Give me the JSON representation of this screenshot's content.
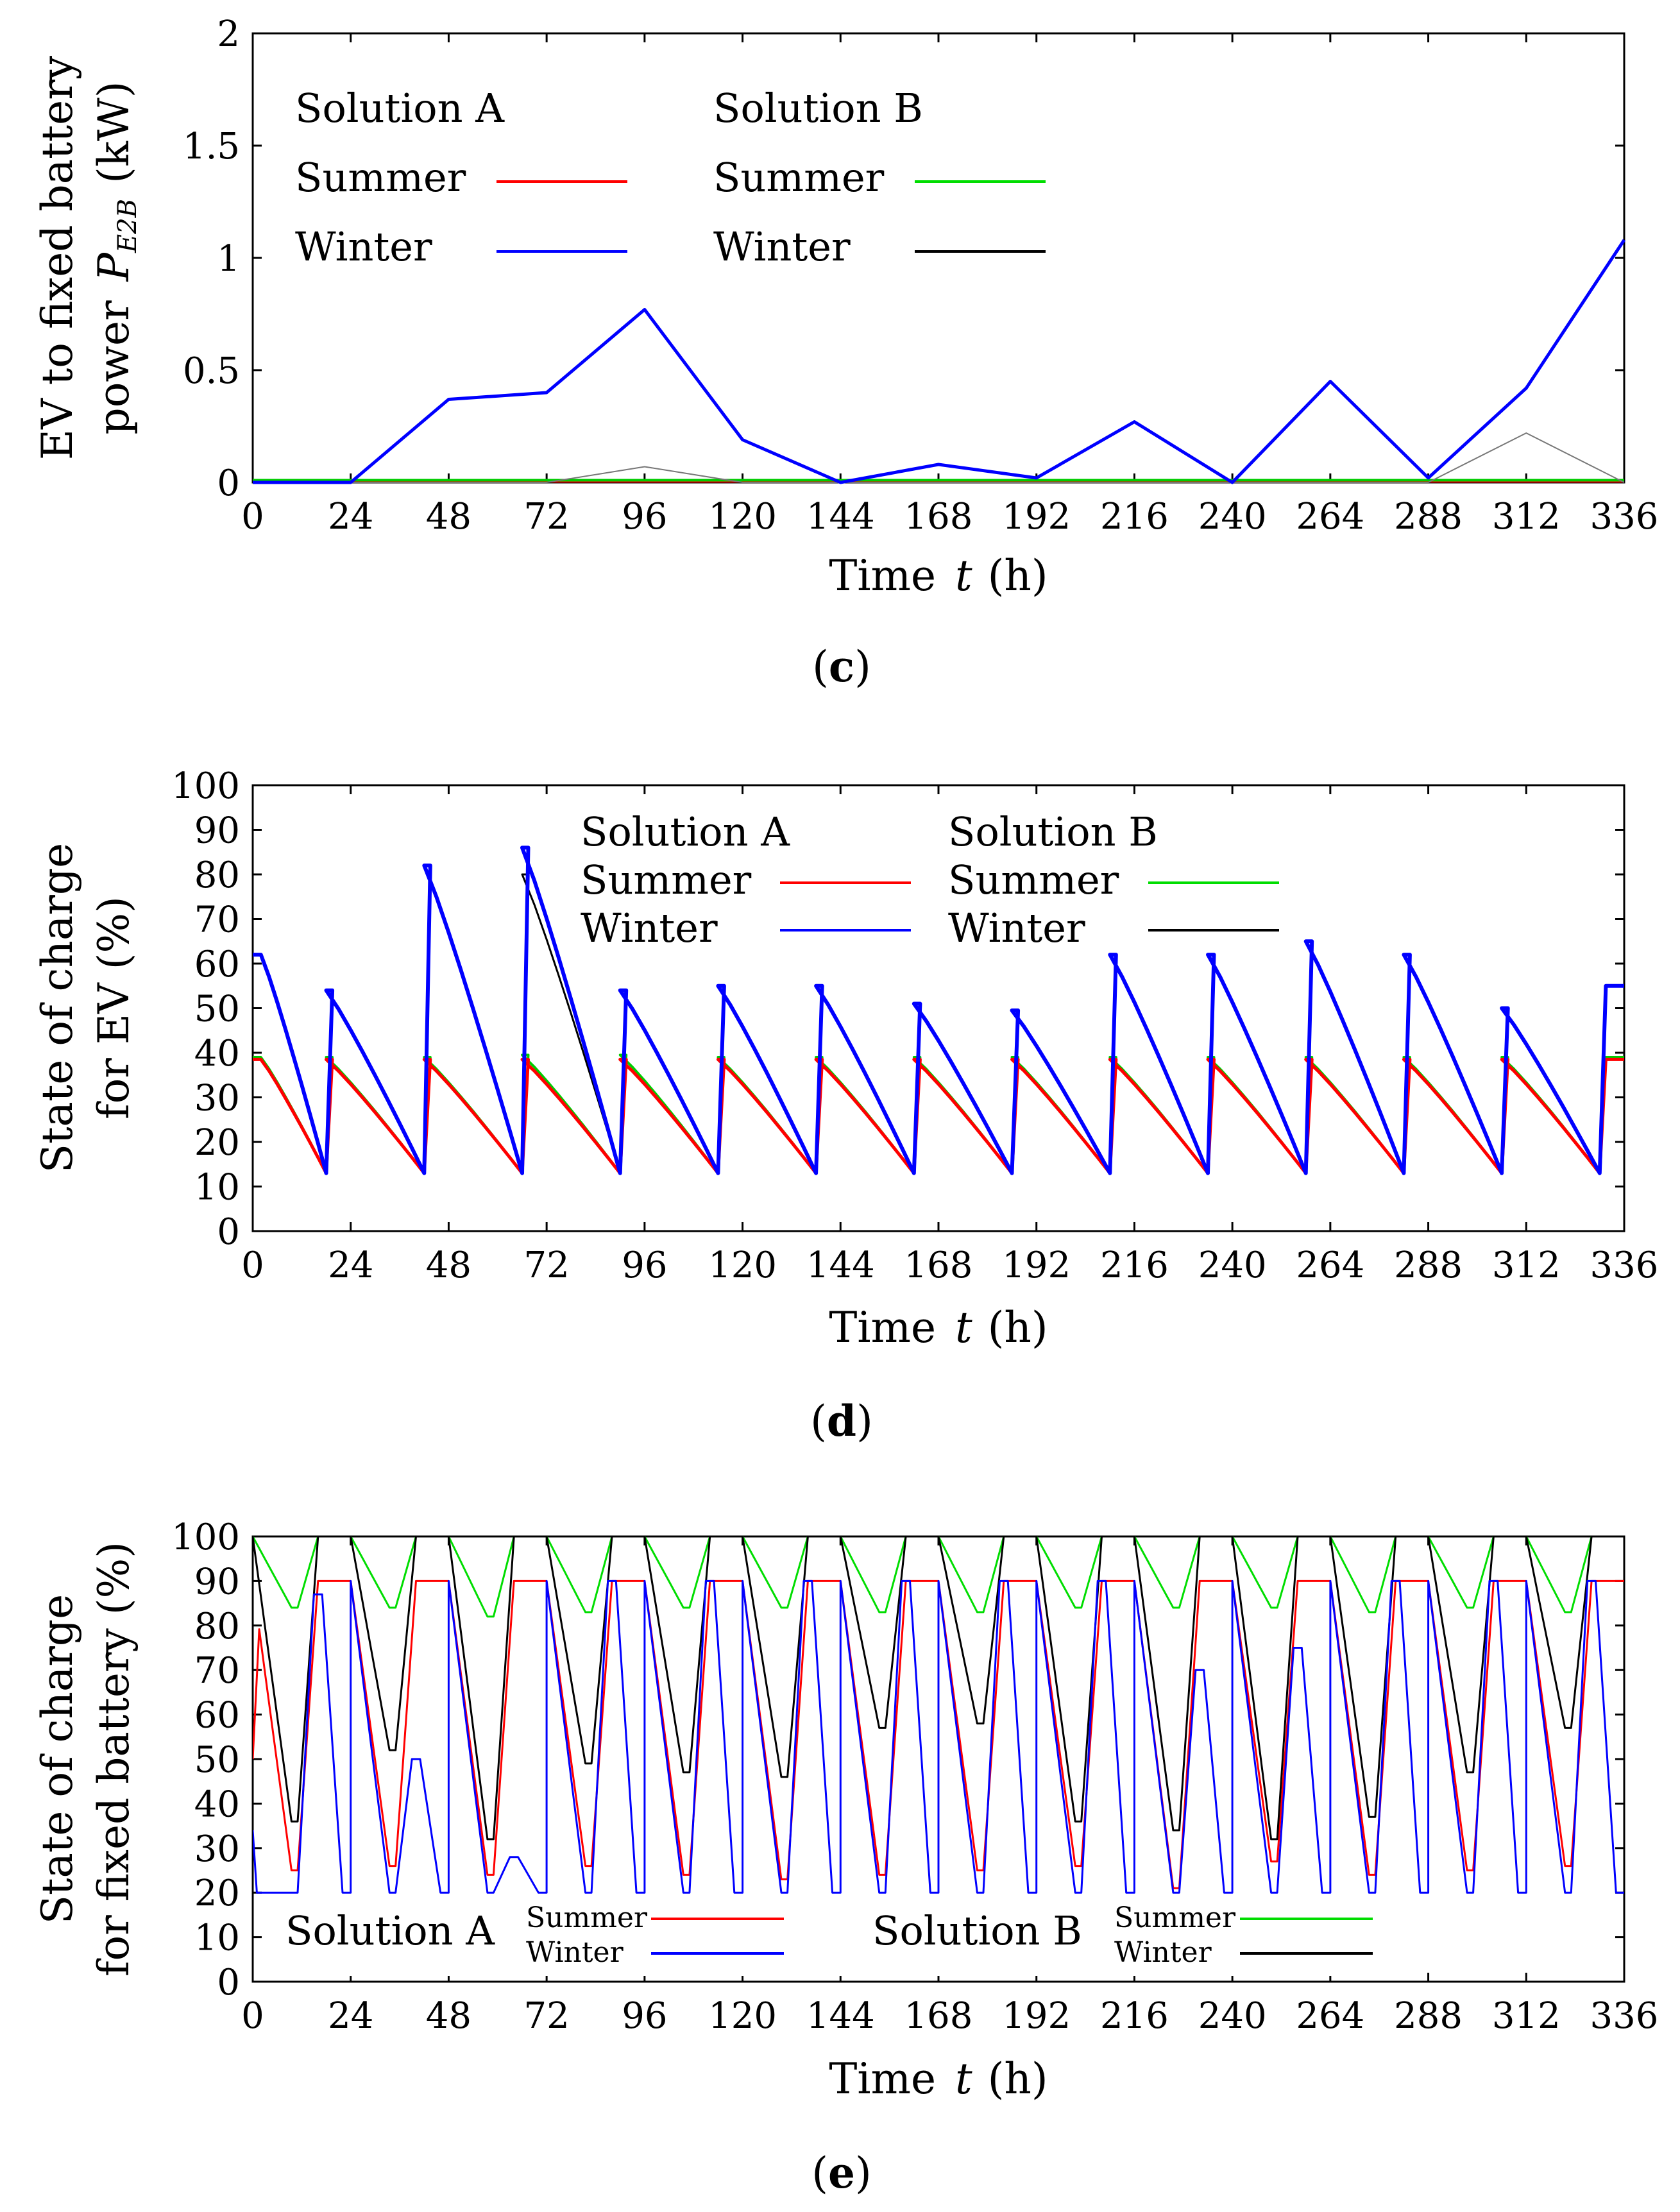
{
  "colors": {
    "summer_a": "#ff0000",
    "winter_a": "#0000ff",
    "summer_b": "#00dd00",
    "winter_b": "#000000"
  },
  "chart_data": [
    {
      "id": "c",
      "panel_label_open": "(",
      "panel_label_letter": "c",
      "panel_label_close": ")",
      "type": "line",
      "ylabel_line1": "EV to fixed battery",
      "ylabel_line2_prefix": "power",
      "ylabel_symbol": "P",
      "ylabel_subscript": "E2B",
      "ylabel_unit": "(kW)",
      "xlabel_prefix": "Time",
      "xlabel_var": "t",
      "xlabel_unit": "(h)",
      "xlim": [
        0,
        336
      ],
      "ylim": [
        0,
        2
      ],
      "xticks": [
        0,
        24,
        48,
        72,
        96,
        120,
        144,
        168,
        192,
        216,
        240,
        264,
        288,
        312,
        336
      ],
      "yticks": [
        0,
        0.5,
        1,
        1.5,
        2
      ],
      "ytick_labels": [
        "0",
        "0.5",
        "1",
        "1.5",
        "2"
      ],
      "legend": {
        "group_a": "Solution A",
        "group_b": "Solution B",
        "summer": "Summer",
        "winter": "Winter"
      },
      "series": [
        {
          "name": "Solution A Summer",
          "color": "#ff0000",
          "width": 4,
          "x": [
            0,
            336
          ],
          "y": [
            0.005,
            0.005
          ]
        },
        {
          "name": "Solution B Summer",
          "color": "#00cc00",
          "width": 4,
          "x": [
            0,
            336
          ],
          "y": [
            0.01,
            0.01
          ]
        },
        {
          "name": "Solution B Winter",
          "color": "#777777",
          "width": 2,
          "x": [
            0,
            24,
            48,
            72,
            96,
            120,
            144,
            168,
            192,
            216,
            240,
            264,
            288,
            312,
            336
          ],
          "y": [
            0,
            0,
            0,
            0,
            0.07,
            0,
            0,
            0,
            0,
            0,
            0,
            0,
            0,
            0.22,
            0
          ]
        },
        {
          "name": "Solution A Winter",
          "color": "#0000ff",
          "width": 5,
          "x": [
            0,
            24,
            48,
            72,
            96,
            120,
            144,
            168,
            192,
            216,
            240,
            264,
            288,
            312,
            336
          ],
          "y": [
            0,
            0,
            0.37,
            0.4,
            0.77,
            0.19,
            0,
            0.08,
            0.02,
            0.27,
            0,
            0.45,
            0.02,
            0.42,
            1.08
          ]
        }
      ]
    },
    {
      "id": "d",
      "panel_label_open": "(",
      "panel_label_letter": "d",
      "panel_label_close": ")",
      "type": "line",
      "ylabel_line1": "State of charge",
      "ylabel_line2": "for EV (%)",
      "xlabel_prefix": "Time",
      "xlabel_var": "t",
      "xlabel_unit": "(h)",
      "xlim": [
        0,
        336
      ],
      "ylim": [
        0,
        100
      ],
      "xticks": [
        0,
        24,
        48,
        72,
        96,
        120,
        144,
        168,
        192,
        216,
        240,
        264,
        288,
        312,
        336
      ],
      "yticks": [
        0,
        10,
        20,
        30,
        40,
        50,
        60,
        70,
        80,
        90,
        100
      ],
      "ytick_labels": [
        "0",
        "10",
        "20",
        "30",
        "40",
        "50",
        "60",
        "70",
        "80",
        "90",
        "100"
      ],
      "legend": {
        "group_a": "Solution A",
        "group_b": "Solution B",
        "summer": "Summer",
        "winter": "Winter"
      },
      "day_starts": [
        0,
        24,
        48,
        72,
        96,
        120,
        144,
        168,
        192,
        216,
        240,
        264,
        288,
        312
      ],
      "series": [
        {
          "name": "Solution B Summer",
          "color": "#00cc00",
          "width": 4,
          "offset": 0,
          "plateaus": [
            39,
            39,
            39.5,
            39.5,
            39,
            39,
            39,
            39,
            39,
            39,
            39,
            39,
            39,
            39
          ],
          "start_value": 39
        },
        {
          "name": "Solution A Summer",
          "color": "#ff0000",
          "width": 5,
          "offset": 0,
          "plateaus": [
            38.5,
            38.5,
            38.5,
            38.5,
            38.5,
            38.5,
            38.5,
            38.5,
            38.5,
            38.5,
            38.5,
            38.5,
            38.5,
            38.5
          ],
          "start_value": 38.5
        },
        {
          "name": "Solution B Winter",
          "color": "#000000",
          "width": 3,
          "offset": 0,
          "plateaus": [
            54,
            82,
            80,
            54,
            55,
            55,
            51,
            49.5,
            62,
            62,
            65,
            62,
            50,
            55
          ],
          "start_value": 62
        },
        {
          "name": "Solution A Winter",
          "color": "#0000ff",
          "width": 6,
          "offset": 0,
          "plateaus": [
            54,
            82,
            86,
            54,
            55,
            55,
            51,
            49.5,
            62,
            62,
            65,
            62,
            50,
            55
          ],
          "start_value": 62
        }
      ]
    },
    {
      "id": "e",
      "panel_label_open": "(",
      "panel_label_letter": "e",
      "panel_label_close": ")",
      "type": "line",
      "ylabel_line1": "State of charge",
      "ylabel_line2": "for fixed battery (%)",
      "xlabel_prefix": "Time",
      "xlabel_var": "t",
      "xlabel_unit": "(h)",
      "xlim": [
        0,
        336
      ],
      "ylim": [
        0,
        100
      ],
      "xticks": [
        0,
        24,
        48,
        72,
        96,
        120,
        144,
        168,
        192,
        216,
        240,
        264,
        288,
        312,
        336
      ],
      "yticks": [
        0,
        10,
        20,
        30,
        40,
        50,
        60,
        70,
        80,
        90,
        100
      ],
      "ytick_labels": [
        "0",
        "10",
        "20",
        "30",
        "40",
        "50",
        "60",
        "70",
        "80",
        "90",
        "100"
      ],
      "legend": {
        "group_a": "Solution A",
        "group_b": "Solution B",
        "summer": "Summer",
        "winter": "Winter"
      },
      "day_starts": [
        0,
        24,
        48,
        72,
        96,
        120,
        144,
        168,
        192,
        216,
        240,
        264,
        288,
        312
      ],
      "series": [
        {
          "name": "Solution B Summer",
          "color": "#00dd00",
          "width": 3,
          "minima": [
            84,
            84,
            82,
            83,
            84,
            84,
            83,
            83,
            84,
            84,
            84,
            83,
            84,
            83
          ],
          "top": 100
        },
        {
          "name": "Solution A Summer",
          "color": "#ff0000",
          "width": 3,
          "minima": [
            25,
            26,
            24,
            26,
            24,
            23,
            24,
            25,
            26,
            21,
            27,
            24,
            25,
            26
          ],
          "top": 90
        },
        {
          "name": "Solution B Winter",
          "color": "#000000",
          "width": 3,
          "minima": [
            36,
            52,
            32,
            49,
            47,
            46,
            57,
            58,
            36,
            34,
            32,
            37,
            47,
            57
          ],
          "top": 100
        },
        {
          "name": "Solution A Winter",
          "color": "#0000ff",
          "width": 3,
          "minima": [
            20,
            20,
            20,
            20,
            20,
            20,
            20,
            20,
            20,
            20,
            20,
            20,
            20,
            20
          ],
          "peaks": [
            87,
            50,
            28,
            90,
            90,
            90,
            90,
            90,
            90,
            70,
            75,
            90,
            90,
            90
          ],
          "top": 90
        }
      ]
    }
  ]
}
